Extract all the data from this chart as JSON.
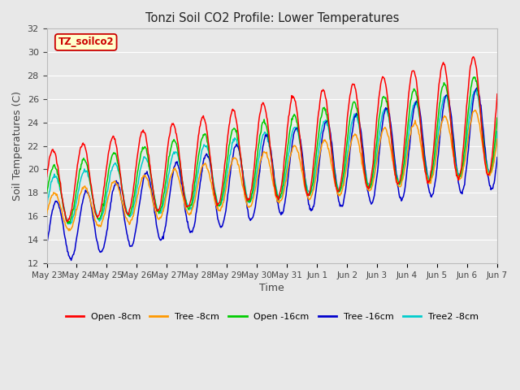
{
  "title": "Tonzi Soil CO2 Profile: Lower Temperatures",
  "xlabel": "Time",
  "ylabel": "Soil Temperatures (C)",
  "ylim": [
    12,
    32
  ],
  "plot_bg_color": "#e8e8e8",
  "grid_color": "#ffffff",
  "series_colors": {
    "Open -8cm": "#ff0000",
    "Tree -8cm": "#ff9900",
    "Open -16cm": "#00cc00",
    "Tree -16cm": "#0000cc",
    "Tree2 -8cm": "#00cccc"
  },
  "watermark_text": "TZ_soilco2",
  "watermark_color": "#cc0000",
  "watermark_bg": "#ffffcc",
  "tick_labels": [
    "May 23",
    "May 24",
    "May 25",
    "May 26",
    "May 27",
    "May 28",
    "May 29",
    "May 30",
    "May 31",
    "Jun 1",
    "Jun 2",
    "Jun 3",
    "Jun 4",
    "Jun 5",
    "Jun 6",
    "Jun 7"
  ]
}
